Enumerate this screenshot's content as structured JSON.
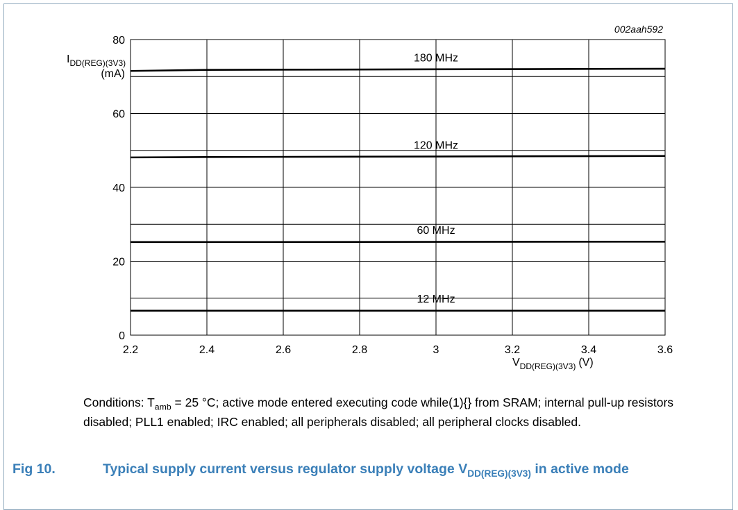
{
  "chart_data": {
    "type": "line",
    "code": "002aah592",
    "y_label": {
      "main": "I",
      "sub": "DD(REG)(3V3)",
      "unit": "(mA)"
    },
    "x_label": {
      "main": "V",
      "sub": "DD(REG)(3V3)",
      "unit": "(V)"
    },
    "x": [
      2.2,
      2.4,
      3.6
    ],
    "series": [
      {
        "name": "180 MHz",
        "color": "#000000",
        "values": [
          71.5,
          71.8,
          72.1
        ]
      },
      {
        "name": "120 MHz",
        "color": "#000000",
        "values": [
          48.1,
          48.2,
          48.5
        ]
      },
      {
        "name": "60 MHz",
        "color": "#000000",
        "values": [
          25.2,
          25.2,
          25.3
        ]
      },
      {
        "name": "12 MHz",
        "color": "#000000",
        "values": [
          6.6,
          6.6,
          6.6
        ]
      }
    ],
    "xlim": [
      2.2,
      3.6
    ],
    "xticks": [
      2.2,
      2.4,
      2.6,
      2.8,
      3,
      3.2,
      3.4,
      3.6
    ],
    "ylim": [
      0,
      80
    ],
    "yticks": [
      0,
      20,
      40,
      60,
      80
    ],
    "yminor": [
      10,
      30,
      50,
      70
    ],
    "grid": true
  },
  "conditions": {
    "pre": "Conditions: T",
    "sub": "amb",
    "post": " = 25 °C; active mode entered executing code while(1){} from SRAM; internal pull-up resistors disabled; PLL1 enabled; IRC enabled; all peripherals disabled; all peripheral clocks disabled."
  },
  "caption": {
    "label": "Fig 10.",
    "pre": "Typical supply current versus regulator supply voltage V",
    "sub": "DD(REG)(3V3)",
    "post": " in active mode"
  }
}
